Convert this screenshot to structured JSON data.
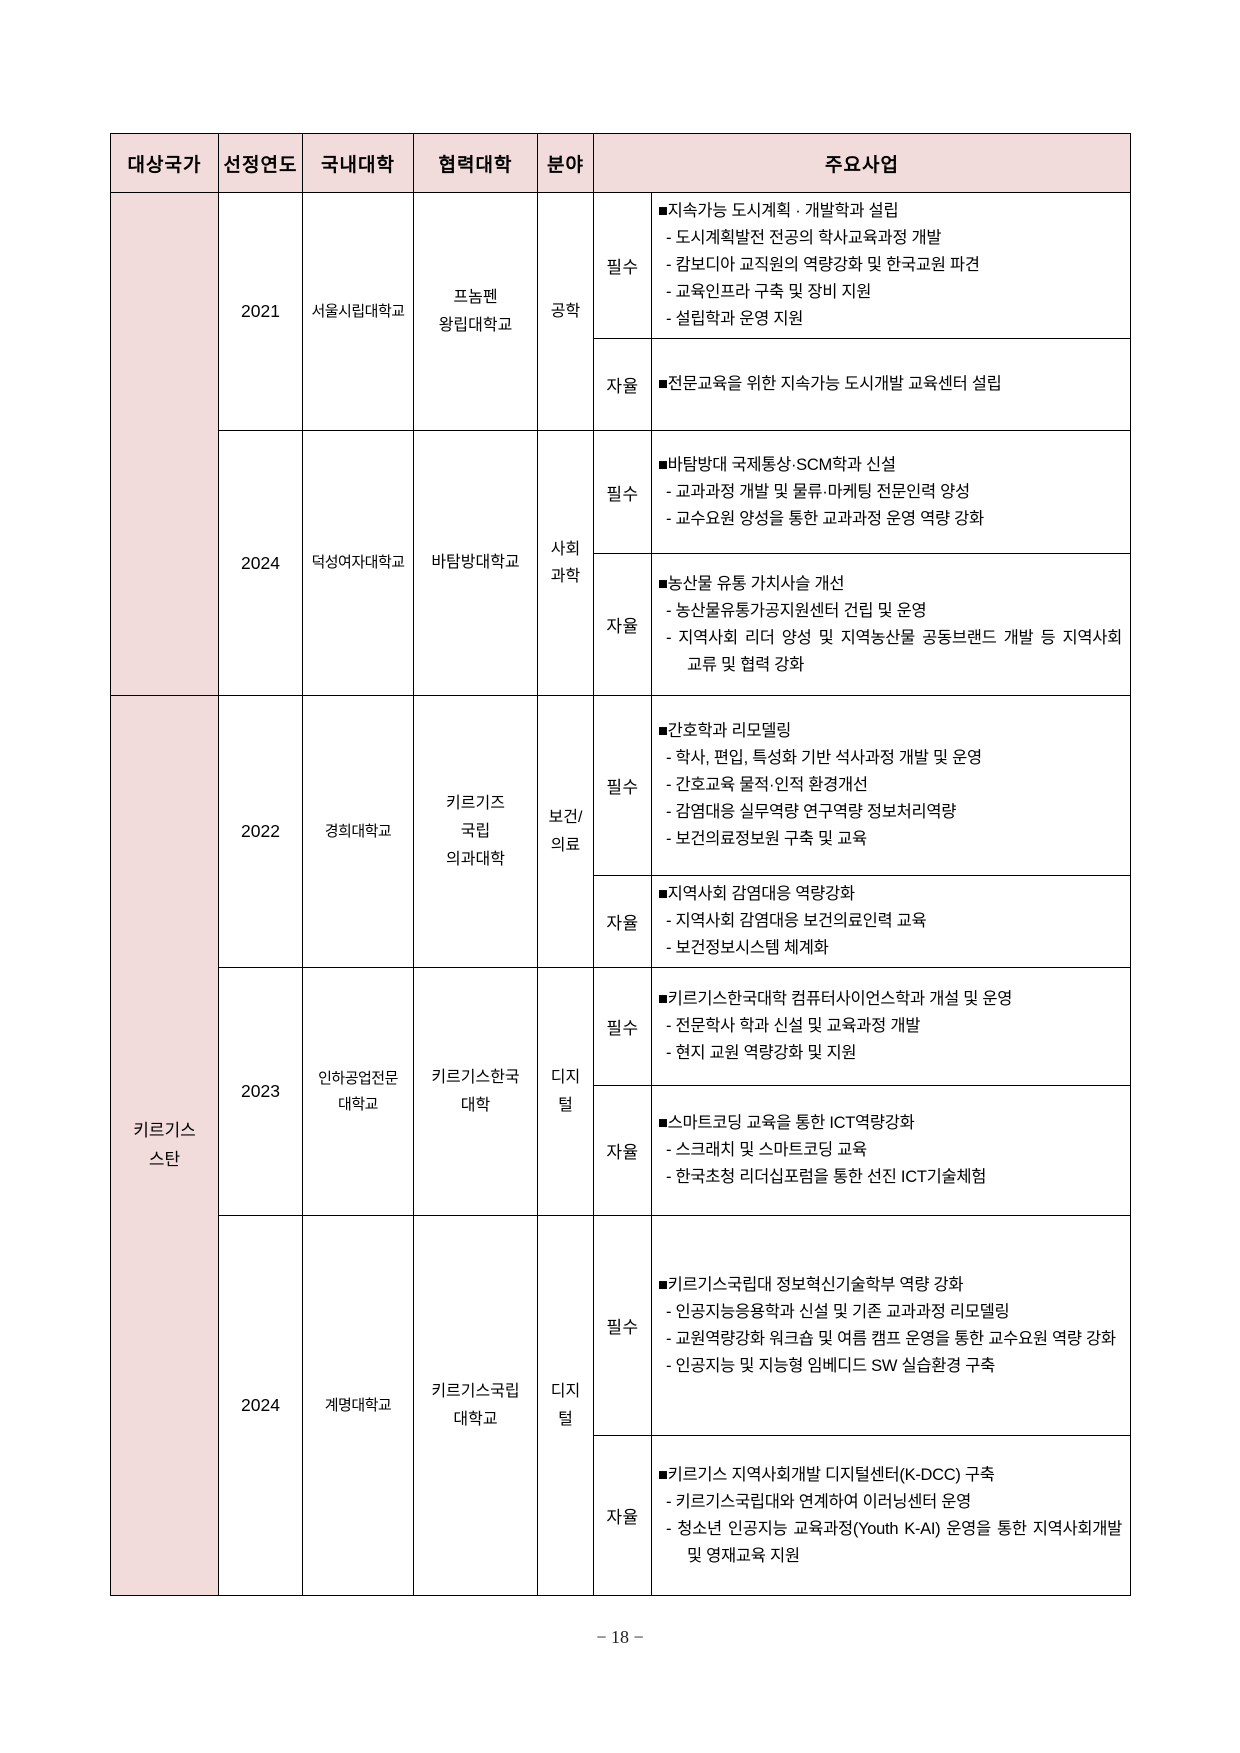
{
  "page": {
    "footer_page_label": "− 18 −"
  },
  "colors": {
    "header_bg": "#f2dcdb",
    "border": "#000000",
    "text": "#000000"
  },
  "table": {
    "headers": [
      "대상국가",
      "선정연도",
      "국내대학",
      "협력대학",
      "분야",
      "주요사업"
    ],
    "type_labels": {
      "required": "필수",
      "autonomous": "자율"
    },
    "groups": [
      {
        "country": "",
        "rows": [
          {
            "year": "2021",
            "domestic_univ": "서울시립대학교",
            "partner_univ": "프놈펜\n왕립대학교",
            "field": "공학",
            "required_lines": [
              "■지속가능 도시계획 · 개발학과 설립",
              "- 도시계획발전 전공의 학사교육과정 개발",
              "- 캄보디아 교직원의 역량강화 및 한국교원 파견",
              "- 교육인프라 구축 및 장비 지원",
              "- 설립학과 운영 지원"
            ],
            "autonomous_lines": [
              "■전문교육을 위한 지속가능 도시개발 교육센터 설립"
            ]
          },
          {
            "year": "2024",
            "domestic_univ": "덕성여자대학교",
            "partner_univ": "바탐방대학교",
            "field": "사회\n과학",
            "required_lines": [
              "■바탐방대 국제통상·SCM학과 신설",
              "- 교과과정 개발 및 물류·마케팅 전문인력 양성",
              "- 교수요원 양성을 통한 교과과정 운영 역량 강화"
            ],
            "autonomous_lines": [
              "■농산물 유통 가치사슬 개선",
              "- 농산물유통가공지원센터 건립 및 운영",
              "- 지역사회 리더 양성 및 지역농산물 공동브랜드 개발 등 지역사회 교류 및 협력 강화"
            ]
          }
        ]
      },
      {
        "country": "키르기스\n스탄",
        "rows": [
          {
            "year": "2022",
            "domestic_univ": "경희대학교",
            "partner_univ": "키르기즈\n국립\n의과대학",
            "field": "보건/\n의료",
            "required_lines": [
              "■간호학과 리모델링",
              "- 학사, 편입, 특성화 기반 석사과정 개발 및 운영",
              "- 간호교육 물적·인적 환경개선",
              "- 감염대응 실무역량 연구역량 정보처리역량",
              "- 보건의료정보원 구축 및 교육"
            ],
            "autonomous_lines": [
              "■지역사회 감염대응 역량강화",
              "- 지역사회 감염대응 보건의료인력 교육",
              "- 보건정보시스템 체계화"
            ]
          },
          {
            "year": "2023",
            "domestic_univ": "인하공업전문\n대학교",
            "partner_univ": "키르기스한국\n대학",
            "field": "디지\n털",
            "required_lines": [
              "■키르기스한국대학 컴퓨터사이언스학과 개설 및 운영",
              "- 전문학사 학과 신설 및 교육과정 개발",
              "- 현지 교원 역량강화 및 지원"
            ],
            "autonomous_lines": [
              "■스마트코딩 교육을 통한 ICT역량강화",
              "- 스크래치 및 스마트코딩 교육",
              "- 한국초청 리더십포럼을 통한 선진 ICT기술체험"
            ]
          },
          {
            "year": "2024",
            "domestic_univ": "계명대학교",
            "partner_univ": "키르기스국립\n대학교",
            "field": "디지\n털",
            "required_lines": [
              "■키르기스국립대 정보혁신기술학부 역량 강화",
              "- 인공지능응용학과 신설 및 기존 교과과정 리모델링",
              "- 교원역량강화 워크숍 및 여름 캠프 운영을 통한 교수요원 역량 강화",
              "- 인공지능 및 지능형 임베디드 SW 실습환경 구축"
            ],
            "autonomous_lines": [
              "■키르기스 지역사회개발 디지털센터(K-DCC) 구축",
              "- 키르기스국립대와 연계하여 이러닝센터 운영",
              "- 청소년 인공지능 교육과정(Youth K-AI) 운영을 통한 지역사회개발 및 영재교육 지원"
            ]
          }
        ]
      }
    ]
  }
}
